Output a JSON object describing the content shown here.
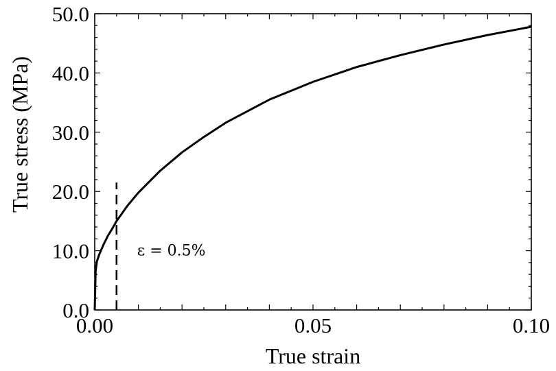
{
  "chart_data": {
    "type": "line",
    "xlabel": "True strain",
    "ylabel": "True stress (MPa)",
    "xlim": [
      0.0,
      0.1
    ],
    "ylim": [
      0.0,
      50.0
    ],
    "x_ticks": [
      "0.00",
      "0.05",
      "0.10"
    ],
    "x_tick_values": [
      0.0,
      0.05,
      0.1
    ],
    "y_ticks": [
      "0.0",
      "10.0",
      "20.0",
      "30.0",
      "40.0",
      "50.0"
    ],
    "y_tick_values": [
      0,
      10,
      20,
      30,
      40,
      50
    ],
    "grid": false,
    "series": [
      {
        "points": [
          [
            0.0,
            0.0
          ],
          [
            0.0002,
            6.5
          ],
          [
            0.0005,
            8.2
          ],
          [
            0.001,
            9.3
          ],
          [
            0.002,
            11.0
          ],
          [
            0.003,
            12.5
          ],
          [
            0.004,
            13.7
          ],
          [
            0.005,
            15.0
          ],
          [
            0.0075,
            17.6
          ],
          [
            0.01,
            19.8
          ],
          [
            0.015,
            23.5
          ],
          [
            0.02,
            26.6
          ],
          [
            0.025,
            29.2
          ],
          [
            0.03,
            31.6
          ],
          [
            0.04,
            35.5
          ],
          [
            0.05,
            38.5
          ],
          [
            0.06,
            41.0
          ],
          [
            0.07,
            43.0
          ],
          [
            0.08,
            44.8
          ],
          [
            0.09,
            46.4
          ],
          [
            0.1,
            47.8
          ]
        ]
      }
    ],
    "annotations": [
      {
        "text": "ε = 0.5%",
        "x": 0.005,
        "line_y_range": [
          0.0,
          21.5
        ]
      }
    ]
  }
}
